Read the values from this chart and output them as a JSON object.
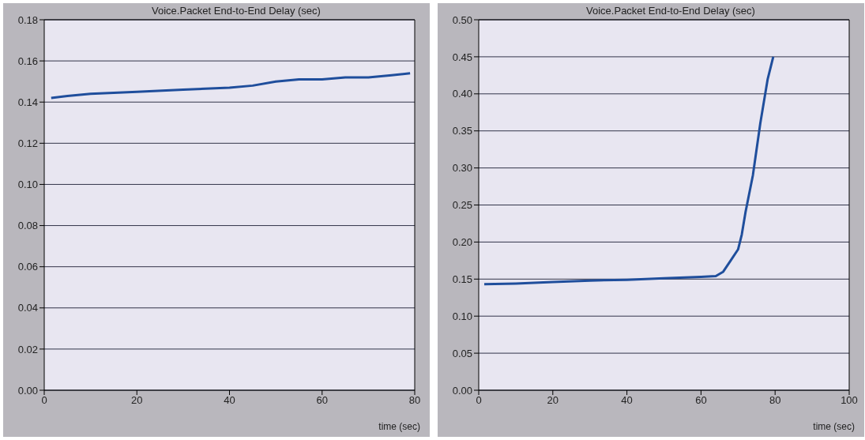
{
  "chart_data": [
    {
      "type": "line",
      "title": "Voice.Packet End-to-End Delay (sec)",
      "xlabel": "time (sec)",
      "xlim": [
        0,
        80
      ],
      "xticks": [
        0,
        20,
        40,
        60,
        80
      ],
      "ylim": [
        0,
        0.18
      ],
      "yticks": [
        {
          "value": 0,
          "label": "0.00"
        },
        {
          "value": 0.02,
          "label": "0.02"
        },
        {
          "value": 0.04,
          "label": "0.04"
        },
        {
          "value": 0.06,
          "label": "0.06"
        },
        {
          "value": 0.08,
          "label": "0.08"
        },
        {
          "value": 0.1,
          "label": "0.10"
        },
        {
          "value": 0.12,
          "label": "0.12"
        },
        {
          "value": 0.14,
          "label": "0.14"
        },
        {
          "value": 0.16,
          "label": "0.16"
        },
        {
          "value": 0.18,
          "label": "0.18"
        }
      ],
      "grid": "y",
      "marker": "none",
      "series": [
        {
          "color": "#1f4e9c",
          "x": [
            1.5,
            5,
            10,
            20,
            30,
            40,
            45,
            50,
            55,
            60,
            65,
            70,
            75,
            79
          ],
          "values": [
            0.142,
            0.143,
            0.144,
            0.145,
            0.146,
            0.147,
            0.148,
            0.15,
            0.151,
            0.151,
            0.152,
            0.152,
            0.153,
            0.154
          ]
        }
      ]
    },
    {
      "type": "line",
      "title": "Voice.Packet End-to-End Delay (sec)",
      "xlabel": "time (sec)",
      "xlim": [
        0,
        100
      ],
      "xticks": [
        0,
        20,
        40,
        60,
        80,
        100
      ],
      "ylim": [
        0,
        0.5
      ],
      "yticks": [
        {
          "value": 0,
          "label": "0.00"
        },
        {
          "value": 0.05,
          "label": "0.05"
        },
        {
          "value": 0.1,
          "label": "0.10"
        },
        {
          "value": 0.15,
          "label": "0.15"
        },
        {
          "value": 0.2,
          "label": "0.20"
        },
        {
          "value": 0.25,
          "label": "0.25"
        },
        {
          "value": 0.3,
          "label": "0.30"
        },
        {
          "value": 0.35,
          "label": "0.35"
        },
        {
          "value": 0.4,
          "label": "0.40"
        },
        {
          "value": 0.45,
          "label": "0.45"
        },
        {
          "value": 0.5,
          "label": "0.50"
        }
      ],
      "grid": "y",
      "marker": "none",
      "series": [
        {
          "color": "#1f4e9c",
          "x": [
            1.5,
            10,
            20,
            30,
            40,
            50,
            60,
            64,
            66,
            68,
            70,
            71,
            72,
            74,
            76,
            78,
            79.5
          ],
          "values": [
            0.143,
            0.144,
            0.146,
            0.148,
            0.149,
            0.151,
            0.153,
            0.154,
            0.16,
            0.175,
            0.19,
            0.21,
            0.24,
            0.29,
            0.36,
            0.42,
            0.45
          ]
        }
      ]
    }
  ]
}
